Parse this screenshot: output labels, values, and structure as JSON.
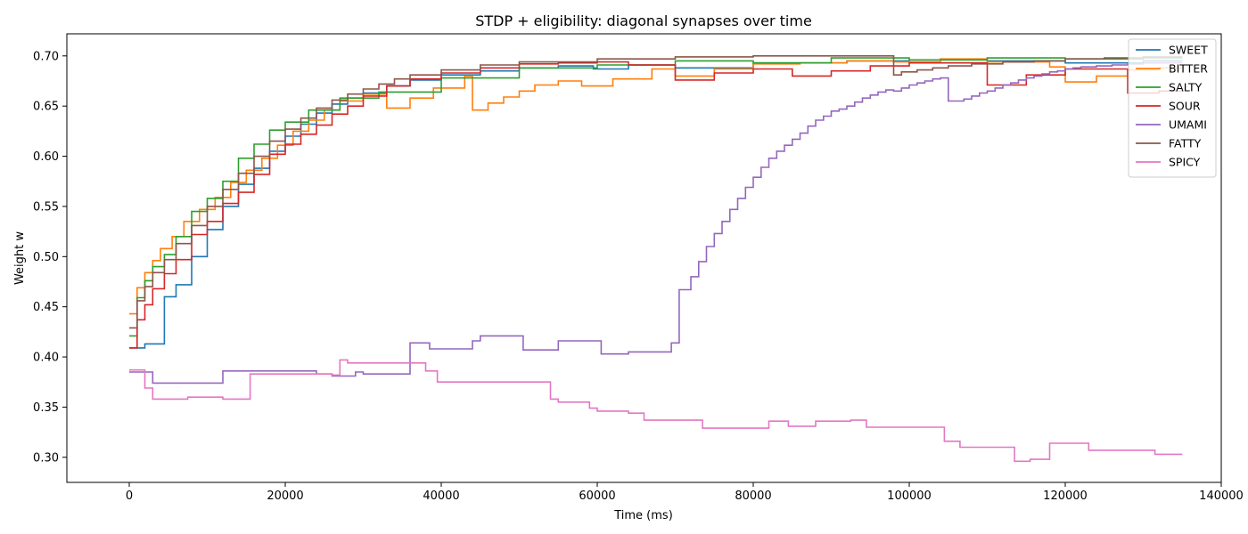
{
  "chart_data": {
    "type": "line",
    "title": "STDP + eligibility: diagonal synapses over time",
    "xlabel": "Time (ms)",
    "ylabel": "Weight w",
    "xlim": [
      -8000,
      140000
    ],
    "ylim": [
      0.275,
      0.722
    ],
    "xticks": [
      0,
      20000,
      40000,
      60000,
      80000,
      100000,
      120000,
      140000
    ],
    "xtick_labels": [
      "0",
      "20000",
      "40000",
      "60000",
      "80000",
      "100000",
      "120000",
      "140000"
    ],
    "yticks": [
      0.3,
      0.35,
      0.4,
      0.45,
      0.5,
      0.55,
      0.6,
      0.65,
      0.7
    ],
    "ytick_labels": [
      "0.30",
      "0.35",
      "0.40",
      "0.45",
      "0.50",
      "0.55",
      "0.60",
      "0.65",
      "0.70"
    ],
    "grid": false,
    "legend_position": "top-right",
    "line_style": "step",
    "series": [
      {
        "name": "SWEET",
        "color": "#1f77b4",
        "x": [
          0,
          2000,
          4500,
          6000,
          8000,
          10000,
          12000,
          14000,
          16000,
          18000,
          20000,
          22000,
          24000,
          26000,
          28000,
          30000,
          33000,
          36000,
          40000,
          45000,
          50000,
          55000,
          59500,
          64000,
          70000,
          80000,
          92000,
          100000,
          110000,
          120000,
          130000,
          135000
        ],
        "y": [
          0.409,
          0.413,
          0.46,
          0.472,
          0.5,
          0.527,
          0.55,
          0.572,
          0.588,
          0.605,
          0.62,
          0.632,
          0.643,
          0.652,
          0.658,
          0.663,
          0.67,
          0.676,
          0.681,
          0.685,
          0.688,
          0.69,
          0.687,
          0.691,
          0.688,
          0.693,
          0.695,
          0.693,
          0.695,
          0.693,
          0.695,
          0.695
        ]
      },
      {
        "name": "BITTER",
        "color": "#ff7f0e",
        "x": [
          0,
          1000,
          2000,
          3000,
          4000,
          5500,
          7000,
          9000,
          11000,
          13000,
          15000,
          17000,
          19000,
          21000,
          23000,
          25000,
          27000,
          30000,
          33000,
          36000,
          39000,
          43000,
          44000,
          46000,
          48000,
          50000,
          52000,
          55000,
          58000,
          62000,
          67000,
          70000,
          75000,
          80000,
          86000,
          92000,
          98000,
          104000,
          110000,
          118000,
          120000,
          124000,
          128000,
          132000,
          135000
        ],
        "y": [
          0.443,
          0.469,
          0.484,
          0.496,
          0.508,
          0.52,
          0.535,
          0.547,
          0.559,
          0.574,
          0.586,
          0.598,
          0.611,
          0.625,
          0.636,
          0.646,
          0.655,
          0.662,
          0.648,
          0.658,
          0.668,
          0.68,
          0.646,
          0.653,
          0.659,
          0.665,
          0.671,
          0.675,
          0.67,
          0.677,
          0.687,
          0.68,
          0.687,
          0.692,
          0.693,
          0.695,
          0.694,
          0.697,
          0.694,
          0.689,
          0.674,
          0.68,
          0.686,
          0.688,
          0.688
        ]
      },
      {
        "name": "SALTY",
        "color": "#2ca02c",
        "x": [
          0,
          1000,
          2000,
          3000,
          4500,
          6000,
          8000,
          10000,
          12000,
          14000,
          16000,
          18000,
          20000,
          23000,
          27000,
          32000,
          40000,
          50000,
          60000,
          70000,
          80000,
          90000,
          100000,
          110000,
          120000,
          130000,
          135000
        ],
        "y": [
          0.421,
          0.459,
          0.476,
          0.49,
          0.502,
          0.52,
          0.545,
          0.558,
          0.575,
          0.598,
          0.612,
          0.626,
          0.634,
          0.646,
          0.658,
          0.664,
          0.678,
          0.688,
          0.691,
          0.695,
          0.693,
          0.698,
          0.696,
          0.698,
          0.697,
          0.698,
          0.698
        ]
      },
      {
        "name": "SOUR",
        "color": "#d62728",
        "x": [
          0,
          1000,
          2000,
          3000,
          4500,
          6000,
          8000,
          10000,
          12000,
          14000,
          16000,
          18000,
          20000,
          22000,
          24000,
          26000,
          28000,
          30000,
          33000,
          36000,
          40000,
          45000,
          50000,
          55000,
          60000,
          64000,
          70000,
          75000,
          80000,
          85000,
          90000,
          95000,
          100000,
          110000,
          115000,
          120000,
          128000,
          132000,
          135000
        ],
        "y": [
          0.409,
          0.437,
          0.452,
          0.468,
          0.483,
          0.497,
          0.522,
          0.535,
          0.553,
          0.564,
          0.582,
          0.602,
          0.612,
          0.622,
          0.631,
          0.642,
          0.65,
          0.66,
          0.67,
          0.677,
          0.683,
          0.688,
          0.692,
          0.693,
          0.694,
          0.691,
          0.676,
          0.683,
          0.687,
          0.68,
          0.685,
          0.69,
          0.693,
          0.671,
          0.681,
          0.687,
          0.663,
          0.665,
          0.665
        ]
      },
      {
        "name": "UMAMI",
        "color": "#9467bd",
        "x": [
          0,
          3000,
          12000,
          24000,
          26000,
          29000,
          30000,
          36000,
          38500,
          44000,
          45000,
          50500,
          55000,
          60500,
          64000,
          69500,
          70500,
          72000,
          73000,
          74000,
          75000,
          76000,
          77000,
          78000,
          79000,
          80000,
          81000,
          82000,
          83000,
          84000,
          85000,
          86000,
          87000,
          88000,
          89000,
          90000,
          91000,
          92000,
          93000,
          94000,
          95000,
          96000,
          97000,
          98000,
          99000,
          100000,
          101000,
          102000,
          103000,
          104000,
          105000,
          107000,
          108000,
          109000,
          110000,
          111000,
          112000,
          113000,
          114000,
          115000,
          116000,
          117000,
          118000,
          119000,
          120000,
          121000,
          122000,
          124000,
          126000,
          128000,
          130000,
          135000
        ],
        "y": [
          0.385,
          0.374,
          0.386,
          0.383,
          0.381,
          0.385,
          0.383,
          0.414,
          0.408,
          0.416,
          0.421,
          0.407,
          0.416,
          0.403,
          0.405,
          0.414,
          0.467,
          0.48,
          0.495,
          0.51,
          0.523,
          0.535,
          0.547,
          0.558,
          0.569,
          0.579,
          0.589,
          0.598,
          0.605,
          0.611,
          0.617,
          0.623,
          0.63,
          0.636,
          0.64,
          0.645,
          0.647,
          0.65,
          0.654,
          0.658,
          0.661,
          0.664,
          0.666,
          0.665,
          0.668,
          0.671,
          0.673,
          0.675,
          0.677,
          0.678,
          0.655,
          0.657,
          0.66,
          0.663,
          0.665,
          0.668,
          0.671,
          0.673,
          0.676,
          0.678,
          0.68,
          0.682,
          0.684,
          0.685,
          0.687,
          0.688,
          0.689,
          0.69,
          0.691,
          0.692,
          0.693,
          0.693
        ]
      },
      {
        "name": "FATTY",
        "color": "#8c564b",
        "x": [
          0,
          1000,
          2000,
          3000,
          4500,
          6000,
          8000,
          10000,
          12000,
          14000,
          16000,
          18000,
          20000,
          22000,
          24000,
          26000,
          28000,
          30000,
          32000,
          34000,
          36000,
          40000,
          45000,
          50000,
          60000,
          70000,
          80000,
          90000,
          98000,
          99000,
          101000,
          103000,
          105000,
          108000,
          112000,
          116000,
          120000,
          125000,
          130000,
          135000
        ],
        "y": [
          0.429,
          0.456,
          0.47,
          0.484,
          0.497,
          0.513,
          0.531,
          0.55,
          0.567,
          0.583,
          0.6,
          0.615,
          0.627,
          0.638,
          0.648,
          0.656,
          0.662,
          0.667,
          0.672,
          0.677,
          0.681,
          0.686,
          0.691,
          0.694,
          0.697,
          0.699,
          0.7,
          0.7,
          0.681,
          0.684,
          0.686,
          0.688,
          0.69,
          0.692,
          0.694,
          0.695,
          0.697,
          0.698,
          0.699,
          0.699
        ]
      },
      {
        "name": "SPICY",
        "color": "#e377c2",
        "x": [
          0,
          2000,
          3000,
          4000,
          7500,
          12000,
          15500,
          26000,
          27000,
          28000,
          38000,
          39500,
          54000,
          55000,
          59000,
          60000,
          64000,
          66000,
          70000,
          73500,
          78000,
          82000,
          84500,
          88000,
          92500,
          94500,
          98000,
          104500,
          106500,
          113500,
          115500,
          118000,
          123000,
          128000,
          131500,
          135000
        ],
        "y": [
          0.387,
          0.369,
          0.358,
          0.358,
          0.36,
          0.358,
          0.383,
          0.382,
          0.397,
          0.394,
          0.386,
          0.375,
          0.358,
          0.355,
          0.349,
          0.346,
          0.344,
          0.337,
          0.337,
          0.329,
          0.329,
          0.336,
          0.331,
          0.336,
          0.337,
          0.33,
          0.33,
          0.316,
          0.31,
          0.296,
          0.298,
          0.314,
          0.307,
          0.307,
          0.303,
          0.303
        ]
      }
    ]
  }
}
